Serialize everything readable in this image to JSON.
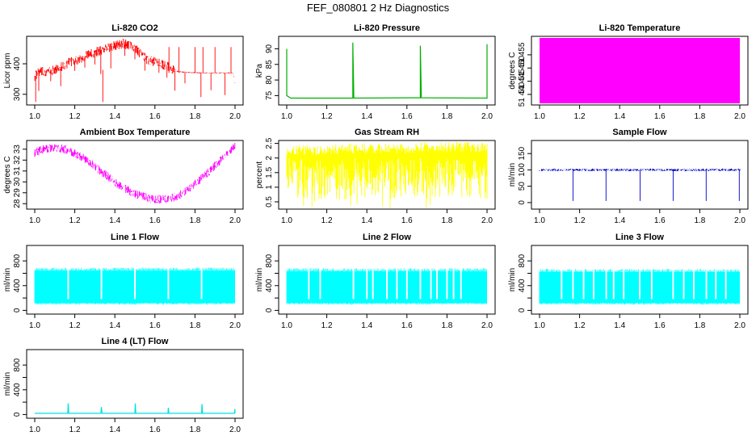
{
  "figure": {
    "title": "FEF_080801  2 Hz Diagnostics"
  },
  "chart_data": [
    {
      "type": "line",
      "title": "Li-820 CO2",
      "xlabel": "",
      "ylabel": "Licor ppm",
      "xlim": [
        1.0,
        2.0
      ],
      "ylim": [
        265,
        490
      ],
      "x_ticks": [
        1.0,
        1.2,
        1.4,
        1.6,
        1.8,
        2.0
      ],
      "y_ticks": [
        300,
        400
      ],
      "series_color": "#ff0000",
      "pattern": "co2",
      "series": [
        {
          "name": "",
          "values": [
            [
              1.0,
              360
            ],
            [
              1.02,
              372
            ],
            [
              1.05,
              374
            ],
            [
              1.08,
              376
            ],
            [
              1.11,
              382
            ],
            [
              1.14,
              392
            ],
            [
              1.17,
              403
            ],
            [
              1.2,
              410
            ],
            [
              1.23,
              418
            ],
            [
              1.26,
              428
            ],
            [
              1.29,
              434
            ],
            [
              1.32,
              442
            ],
            [
              1.35,
              450
            ],
            [
              1.38,
              456
            ],
            [
              1.41,
              462
            ],
            [
              1.44,
              466
            ],
            [
              1.47,
              462
            ],
            [
              1.5,
              450
            ],
            [
              1.53,
              432
            ],
            [
              1.56,
              414
            ],
            [
              1.59,
              408
            ],
            [
              1.62,
              402
            ],
            [
              1.65,
              395
            ],
            [
              1.68,
              386
            ],
            [
              1.7,
              376
            ],
            [
              1.75,
              372
            ],
            [
              1.8,
              371
            ],
            [
              1.85,
              370
            ],
            [
              1.9,
              370
            ],
            [
              1.95,
              370
            ],
            [
              1.99,
              370
            ],
            [
              2.0,
              335
            ]
          ]
        }
      ]
    },
    {
      "type": "line",
      "title": "Li-820 Pressure",
      "xlabel": "",
      "ylabel": "kPa",
      "xlim": [
        1.0,
        2.0
      ],
      "ylim": [
        72,
        94
      ],
      "x_ticks": [
        1.0,
        1.2,
        1.4,
        1.6,
        1.8,
        2.0
      ],
      "y_ticks": [
        75,
        80,
        85,
        90
      ],
      "series_color": "#00b000",
      "pattern": "pressure",
      "series": [
        {
          "name": "",
          "values": [
            [
              1.0,
              90
            ],
            [
              1.0,
              75
            ],
            [
              1.02,
              74.2
            ],
            [
              1.33,
              74.2
            ],
            [
              1.33,
              92
            ],
            [
              1.335,
              74.2
            ],
            [
              1.667,
              74.3
            ],
            [
              1.667,
              91
            ],
            [
              1.672,
              74.3
            ],
            [
              2.0,
              74.2
            ],
            [
              2.0,
              91.5
            ]
          ]
        }
      ]
    },
    {
      "type": "area",
      "title": "Li-820 Temperature",
      "xlabel": "",
      "ylabel": "degrees C",
      "xlim": [
        1.0,
        2.0
      ],
      "ylim": [
        51436,
        51462
      ],
      "x_ticks": [
        1.0,
        1.2,
        1.4,
        1.6,
        1.8,
        2.0
      ],
      "y_ticks": [
        51440,
        51445,
        51450,
        51455
      ],
      "y_tick_labels": [
        "51 440",
        "51 445",
        "51 450",
        "51 455"
      ],
      "series_color": "#ff00ff",
      "pattern": "block",
      "series": [
        {
          "name": "",
          "values": [
            [
              1.0,
              51462
            ],
            [
              2.0,
              51462
            ]
          ]
        }
      ]
    },
    {
      "type": "line",
      "title": "Ambient Box Temperature",
      "xlabel": "",
      "ylabel": "degrees C",
      "xlim": [
        1.0,
        2.0
      ],
      "ylim": [
        27.5,
        33.8
      ],
      "x_ticks": [
        1.0,
        1.2,
        1.4,
        1.6,
        1.8,
        2.0
      ],
      "y_ticks": [
        28,
        29,
        30,
        31,
        32,
        33
      ],
      "series_color": "#ff00ff",
      "pattern": "ambient",
      "series": [
        {
          "name": "",
          "values": [
            [
              1.0,
              32.7
            ],
            [
              1.05,
              33.0
            ],
            [
              1.1,
              33.1
            ],
            [
              1.15,
              33.0
            ],
            [
              1.2,
              32.6
            ],
            [
              1.25,
              32.1
            ],
            [
              1.3,
              31.4
            ],
            [
              1.35,
              30.7
            ],
            [
              1.4,
              30.0
            ],
            [
              1.45,
              29.4
            ],
            [
              1.5,
              28.9
            ],
            [
              1.55,
              28.6
            ],
            [
              1.6,
              28.4
            ],
            [
              1.65,
              28.4
            ],
            [
              1.7,
              28.6
            ],
            [
              1.75,
              29.1
            ],
            [
              1.8,
              29.8
            ],
            [
              1.85,
              30.6
            ],
            [
              1.9,
              31.5
            ],
            [
              1.95,
              32.4
            ],
            [
              2.0,
              33.3
            ]
          ]
        }
      ]
    },
    {
      "type": "line",
      "title": "Gas Stream RH",
      "xlabel": "",
      "ylabel": "percent",
      "xlim": [
        1.0,
        2.0
      ],
      "ylim": [
        0.25,
        2.6
      ],
      "x_ticks": [
        1.0,
        1.2,
        1.4,
        1.6,
        1.8,
        2.0
      ],
      "y_ticks": [
        0.5,
        1.0,
        1.5,
        2.0,
        2.5
      ],
      "series_color": "#ffff00",
      "pattern": "rh",
      "series": [
        {
          "name": "",
          "values": [
            [
              1.0,
              2.1
            ],
            [
              1.1,
              2.1
            ],
            [
              1.2,
              2.1
            ],
            [
              1.3,
              2.15
            ],
            [
              1.4,
              2.15
            ],
            [
              1.5,
              2.15
            ],
            [
              1.6,
              2.15
            ],
            [
              1.7,
              2.2
            ],
            [
              1.8,
              2.2
            ],
            [
              1.9,
              2.2
            ],
            [
              2.0,
              2.2
            ]
          ]
        }
      ]
    },
    {
      "type": "line",
      "title": "Sample Flow",
      "xlabel": "",
      "ylabel": "ml/min",
      "xlim": [
        1.0,
        2.0
      ],
      "ylim": [
        -20,
        190
      ],
      "x_ticks": [
        1.0,
        1.2,
        1.4,
        1.6,
        1.8,
        2.0
      ],
      "y_ticks": [
        0,
        50,
        100,
        150
      ],
      "series_color": "#0000cc",
      "pattern": "sample",
      "series": [
        {
          "name": "",
          "values": [
            [
              1.0,
              100
            ],
            [
              1.165,
              100
            ],
            [
              1.167,
              5
            ],
            [
              1.17,
              100
            ],
            [
              1.33,
              100
            ],
            [
              1.332,
              5
            ],
            [
              1.335,
              100
            ],
            [
              1.5,
              100
            ],
            [
              1.502,
              5
            ],
            [
              1.505,
              100
            ],
            [
              1.665,
              100
            ],
            [
              1.667,
              5
            ],
            [
              1.67,
              100
            ],
            [
              1.83,
              100
            ],
            [
              1.832,
              5
            ],
            [
              1.835,
              100
            ],
            [
              1.995,
              100
            ],
            [
              1.997,
              5
            ],
            [
              2.0,
              100
            ]
          ]
        }
      ]
    },
    {
      "type": "area",
      "title": "Line 1 Flow",
      "xlabel": "",
      "ylabel": "ml/min",
      "xlim": [
        1.0,
        2.0
      ],
      "ylim": [
        -60,
        1050
      ],
      "x_ticks": [
        1.0,
        1.2,
        1.4,
        1.6,
        1.8,
        2.0
      ],
      "y_ticks": [
        0,
        200,
        400,
        600,
        800
      ],
      "y_tick_labels": [
        "0",
        "",
        "400",
        "",
        "800"
      ],
      "series_color": "#00ffff",
      "pattern": "lineflow",
      "series": [
        {
          "name": "",
          "values": [
            [
              1.0,
              640
            ],
            [
              1.167,
              640
            ],
            [
              1.333,
              640
            ],
            [
              1.5,
              640
            ],
            [
              1.667,
              640
            ],
            [
              1.833,
              640
            ],
            [
              2.0,
              640
            ]
          ]
        }
      ],
      "gaps": [
        1.167,
        1.333,
        1.5,
        1.667,
        1.833
      ]
    },
    {
      "type": "area",
      "title": "Line 2 Flow",
      "xlabel": "",
      "ylabel": "ml/min",
      "xlim": [
        1.0,
        2.0
      ],
      "ylim": [
        -60,
        1050
      ],
      "x_ticks": [
        1.0,
        1.2,
        1.4,
        1.6,
        1.8,
        2.0
      ],
      "y_ticks": [
        0,
        200,
        400,
        600,
        800
      ],
      "y_tick_labels": [
        "0",
        "",
        "400",
        "",
        "800"
      ],
      "series_color": "#00ffff",
      "pattern": "lineflow",
      "series": [
        {
          "name": "",
          "values": [
            [
              1.0,
              630
            ],
            [
              1.1,
              630
            ],
            [
              1.3,
              630
            ],
            [
              1.5,
              630
            ],
            [
              1.7,
              630
            ],
            [
              1.9,
              630
            ],
            [
              2.0,
              630
            ]
          ]
        }
      ],
      "gaps": [
        1.11,
        1.167,
        1.333,
        1.4,
        1.43,
        1.5,
        1.55,
        1.6,
        1.667,
        1.72,
        1.75,
        1.8,
        1.833,
        1.87
      ]
    },
    {
      "type": "area",
      "title": "Line 3 Flow",
      "xlabel": "",
      "ylabel": "ml/min",
      "xlim": [
        1.0,
        2.0
      ],
      "ylim": [
        -60,
        1050
      ],
      "x_ticks": [
        1.0,
        1.2,
        1.4,
        1.6,
        1.8,
        2.0
      ],
      "y_ticks": [
        0,
        200,
        400,
        600,
        800
      ],
      "y_tick_labels": [
        "0",
        "",
        "400",
        "",
        "800"
      ],
      "series_color": "#00ffff",
      "pattern": "lineflow",
      "series": [
        {
          "name": "",
          "values": [
            [
              1.0,
              620
            ],
            [
              1.1,
              620
            ],
            [
              1.3,
              620
            ],
            [
              1.5,
              620
            ],
            [
              1.7,
              620
            ],
            [
              1.9,
              620
            ],
            [
              2.0,
              620
            ]
          ]
        }
      ],
      "gaps": [
        1.11,
        1.167,
        1.22,
        1.27,
        1.333,
        1.37,
        1.42,
        1.5,
        1.56,
        1.667,
        1.72,
        1.77,
        1.833,
        1.88,
        1.93
      ]
    },
    {
      "type": "line",
      "title": "Line 4 (LT) Flow",
      "xlabel": "",
      "ylabel": "ml/min",
      "xlim": [
        1.0,
        2.0
      ],
      "ylim": [
        -60,
        1050
      ],
      "x_ticks": [
        1.0,
        1.2,
        1.4,
        1.6,
        1.8,
        2.0
      ],
      "y_ticks": [
        0,
        200,
        400,
        600,
        800
      ],
      "y_tick_labels": [
        "0",
        "",
        "400",
        "",
        "800"
      ],
      "series_color": "#00e0e0",
      "pattern": "lt",
      "series": [
        {
          "name": "",
          "values": [
            [
              1.0,
              20
            ],
            [
              1.165,
              20
            ],
            [
              1.167,
              180
            ],
            [
              1.17,
              20
            ],
            [
              1.33,
              20
            ],
            [
              1.333,
              120
            ],
            [
              1.336,
              20
            ],
            [
              1.5,
              20
            ],
            [
              1.502,
              180
            ],
            [
              1.505,
              20
            ],
            [
              1.665,
              20
            ],
            [
              1.667,
              110
            ],
            [
              1.67,
              20
            ],
            [
              1.833,
              20
            ],
            [
              1.835,
              170
            ],
            [
              1.838,
              20
            ],
            [
              1.997,
              20
            ],
            [
              1.999,
              90
            ],
            [
              2.0,
              20
            ]
          ]
        }
      ]
    }
  ]
}
